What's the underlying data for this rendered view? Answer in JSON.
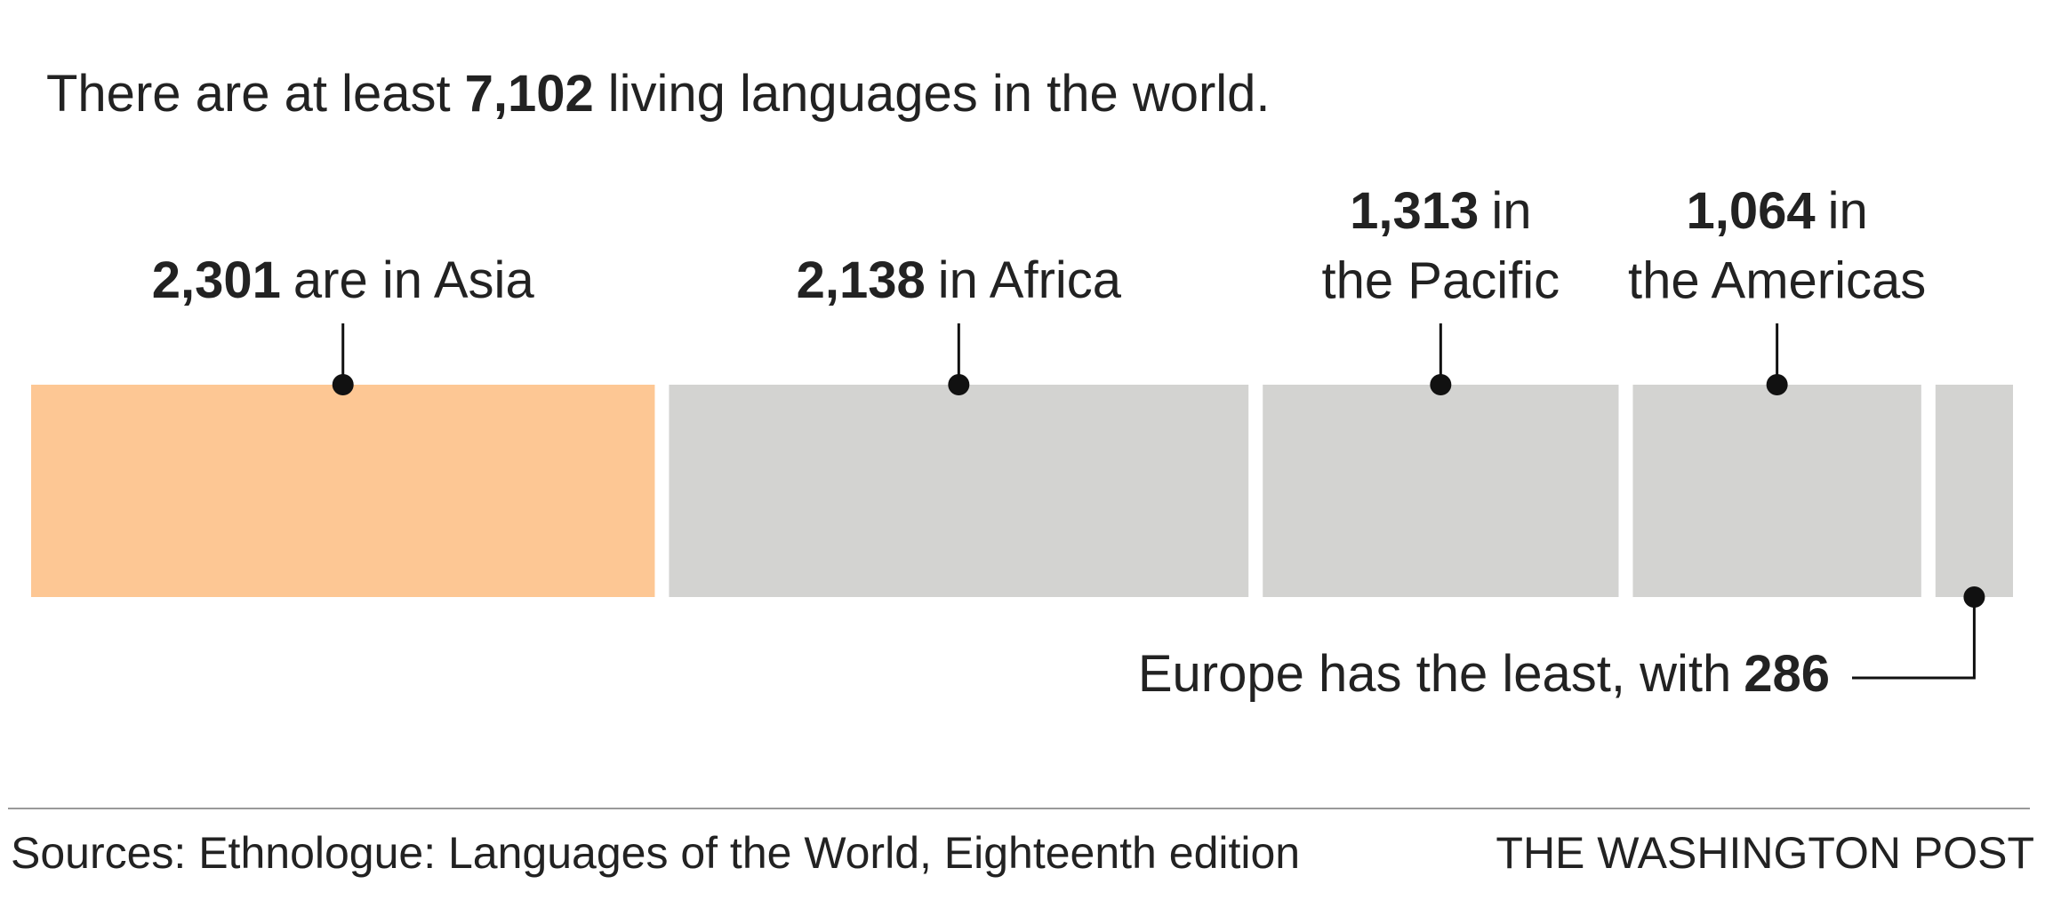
{
  "chart_data": {
    "type": "stacked-bar",
    "title": [
      "There are at least",
      "living languages in the world."
    ],
    "total": "7,102",
    "values": [
      2301,
      2138,
      1313,
      1064,
      286
    ],
    "value_labels": [
      "2,301",
      "2,138",
      "1,313",
      "1,064",
      "286"
    ],
    "colors": [
      "#fdc794",
      "#d3d3d1",
      "#d3d3d1",
      "#d3d3d1",
      "#d3d3d1"
    ],
    "annotations": [
      {
        "after": [
          "are in Asia"
        ]
      },
      {
        "after": [
          "in Africa"
        ]
      },
      {
        "after": [
          "in",
          "the Pacific"
        ]
      },
      {
        "after": [
          "in",
          "the Americas"
        ]
      },
      {
        "before": "Europe has the least, with"
      }
    ],
    "source": "Sources: Ethnologue: Languages of the World, Eighteenth edition",
    "credit": "THE WASHINGTON POST"
  }
}
